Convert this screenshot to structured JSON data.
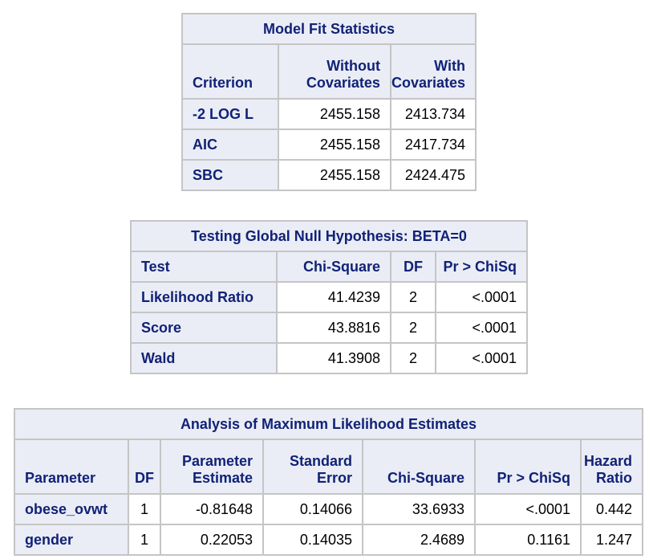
{
  "fit": {
    "caption": "Model Fit Statistics",
    "headers": [
      "Criterion",
      "Without Covariates",
      "With Covariates"
    ],
    "rows": [
      {
        "criterion": "-2 LOG L",
        "without": "2455.158",
        "with": "2413.734"
      },
      {
        "criterion": "AIC",
        "without": "2455.158",
        "with": "2417.734"
      },
      {
        "criterion": "SBC",
        "without": "2455.158",
        "with": "2424.475"
      }
    ]
  },
  "global": {
    "caption": "Testing Global Null Hypothesis: BETA=0",
    "headers": [
      "Test",
      "Chi-Square",
      "DF",
      "Pr > ChiSq"
    ],
    "rows": [
      {
        "test": "Likelihood Ratio",
        "chisq": "41.4239",
        "df": "2",
        "p": "<.0001"
      },
      {
        "test": "Score",
        "chisq": "43.8816",
        "df": "2",
        "p": "<.0001"
      },
      {
        "test": "Wald",
        "chisq": "41.3908",
        "df": "2",
        "p": "<.0001"
      }
    ]
  },
  "mle": {
    "caption": "Analysis of Maximum Likelihood Estimates",
    "headers": [
      "Parameter",
      "DF",
      "Parameter Estimate",
      "Standard Error",
      "Chi-Square",
      "Pr > ChiSq",
      "Hazard Ratio"
    ],
    "rows": [
      {
        "param": "obese_ovwt",
        "df": "1",
        "est": "-0.81648",
        "se": "0.14066",
        "chisq": "33.6933",
        "p": "<.0001",
        "hr": "0.442"
      },
      {
        "param": "gender",
        "df": "1",
        "est": "0.22053",
        "se": "0.14035",
        "chisq": "2.4689",
        "p": "0.1161",
        "hr": "1.247"
      }
    ]
  }
}
